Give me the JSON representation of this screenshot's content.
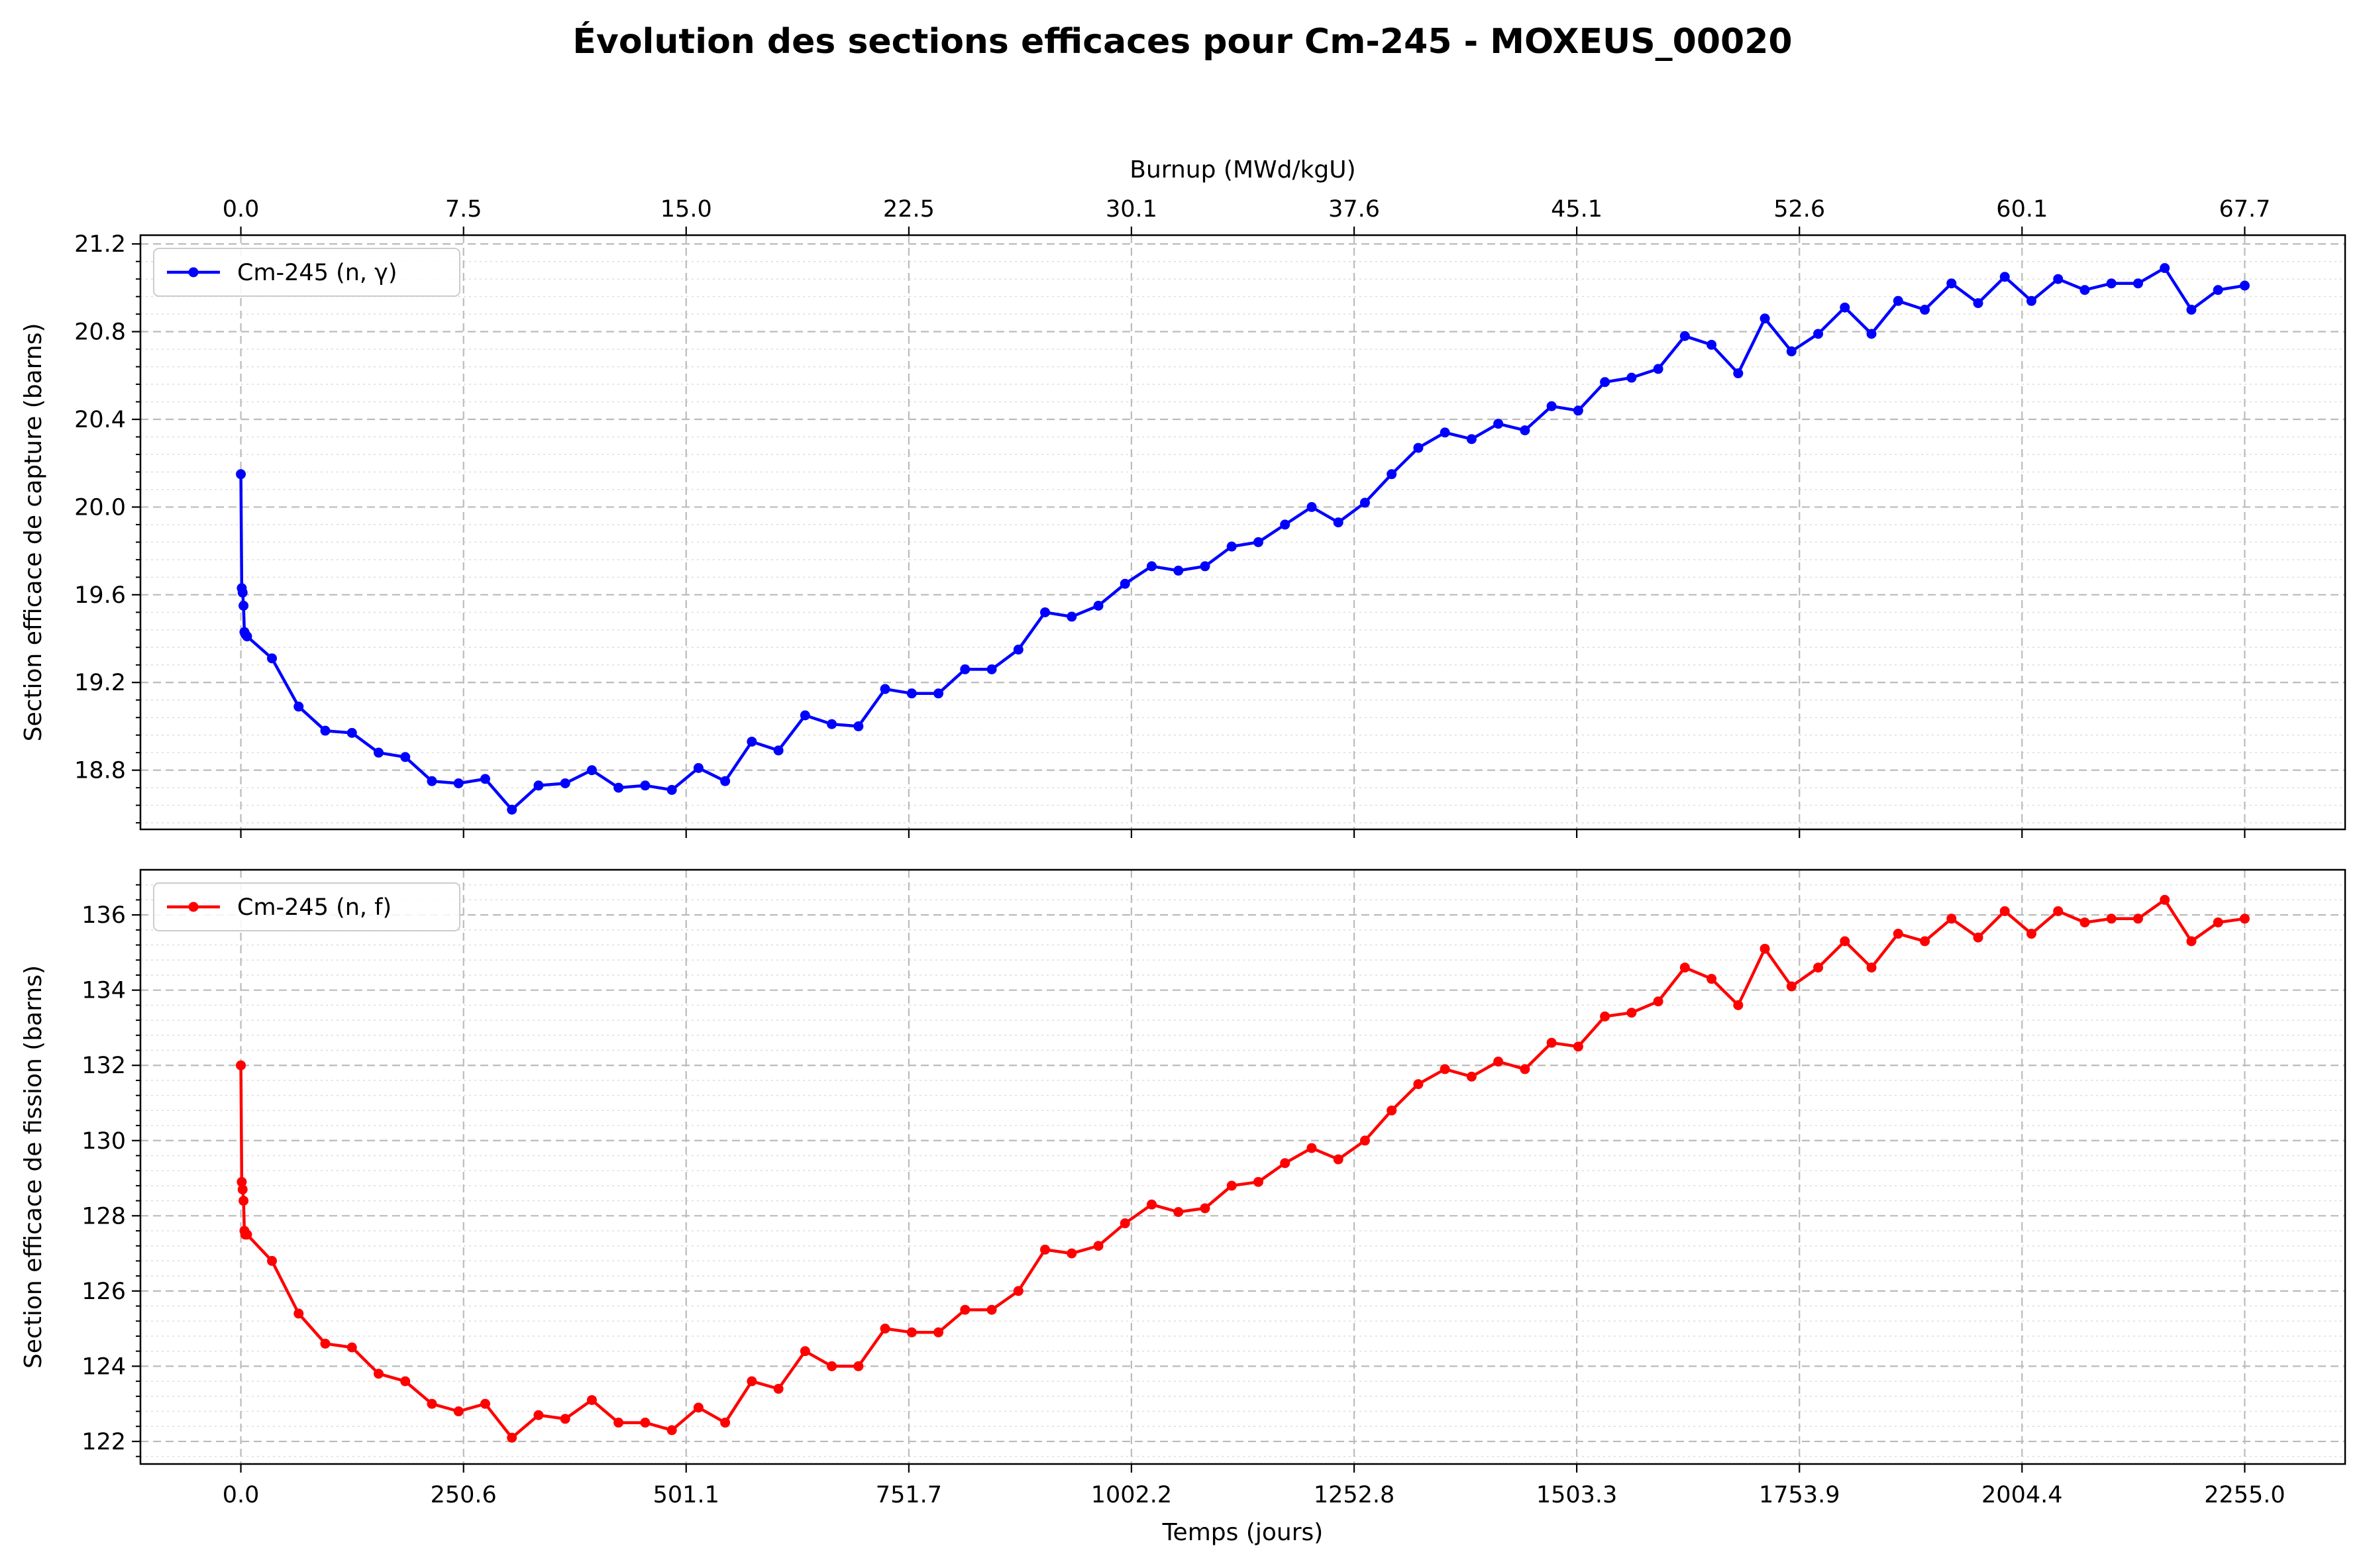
{
  "figure": {
    "title": "Évolution des sections efficaces pour Cm-245 - MOXEUS_00020"
  },
  "chart_data": [
    {
      "type": "line",
      "id": "capture",
      "title": "",
      "xlabel": "Temps (jours)",
      "x2label": "Burnup (MWd/kgU)",
      "ylabel": "Section efficace de capture (barns)",
      "legend": "top-left",
      "grid": true,
      "xlim": [
        -113,
        2368
      ],
      "ylim": [
        18.53,
        21.24
      ],
      "x_ticks": [
        0.0,
        250.6,
        501.1,
        751.7,
        1002.2,
        1252.8,
        1503.3,
        1753.9,
        2004.4,
        2255.0
      ],
      "x_tick_labels": [
        "0.0",
        "250.6",
        "501.1",
        "751.7",
        "1002.2",
        "1252.8",
        "1503.3",
        "1753.9",
        "2004.4",
        "2255.0"
      ],
      "x2_ticks": [
        0.0,
        250.6,
        501.1,
        751.7,
        1002.2,
        1252.8,
        1503.3,
        1753.9,
        2004.4,
        2255.0
      ],
      "x2_tick_labels": [
        "0.0",
        "7.5",
        "15.0",
        "22.5",
        "30.1",
        "37.6",
        "45.1",
        "52.6",
        "60.1",
        "67.7"
      ],
      "y_ticks": [
        18.8,
        19.2,
        19.6,
        20.0,
        20.4,
        20.8,
        21.2
      ],
      "y_tick_labels": [
        "18.8",
        "19.2",
        "19.6",
        "20.0",
        "20.4",
        "20.8",
        "21.2"
      ],
      "series": [
        {
          "name": "Cm-245 (n, γ)",
          "color": "#0000ff",
          "x": [
            0,
            1,
            2,
            3,
            4,
            5,
            7,
            35,
            65,
            95,
            125,
            155,
            185,
            215,
            245,
            275,
            305,
            335,
            365,
            395,
            425,
            455,
            485,
            515,
            545,
            575,
            605,
            635,
            665,
            695,
            725,
            755,
            785,
            815,
            845,
            875,
            905,
            935,
            965,
            995,
            1025,
            1055,
            1085,
            1115,
            1145,
            1175,
            1205,
            1235,
            1265,
            1295,
            1325,
            1355,
            1385,
            1415,
            1445,
            1475,
            1505,
            1535,
            1565,
            1595,
            1625,
            1655,
            1685,
            1715,
            1745,
            1775,
            1805,
            1835,
            1865,
            1895,
            1925,
            1955,
            1985,
            2015,
            2045,
            2075,
            2105,
            2135,
            2165,
            2195,
            2225,
            2255
          ],
          "values": [
            20.15,
            19.63,
            19.61,
            19.55,
            19.43,
            19.42,
            19.41,
            19.31,
            19.09,
            18.98,
            18.97,
            18.88,
            18.86,
            18.75,
            18.74,
            18.76,
            18.62,
            18.73,
            18.74,
            18.8,
            18.72,
            18.73,
            18.71,
            18.81,
            18.75,
            18.93,
            18.89,
            19.05,
            19.01,
            19.0,
            19.17,
            19.15,
            19.15,
            19.26,
            19.26,
            19.35,
            19.52,
            19.5,
            19.55,
            19.65,
            19.73,
            19.71,
            19.73,
            19.82,
            19.84,
            19.92,
            20.0,
            19.93,
            20.02,
            20.15,
            20.27,
            20.34,
            20.31,
            20.38,
            20.35,
            20.46,
            20.44,
            20.57,
            20.59,
            20.63,
            20.78,
            20.74,
            20.61,
            20.86,
            20.71,
            20.79,
            20.91,
            20.79,
            20.94,
            20.9,
            21.02,
            20.93,
            21.05,
            20.94,
            21.04,
            20.99,
            21.02,
            21.02,
            21.09,
            20.9,
            20.99,
            21.01
          ]
        }
      ]
    },
    {
      "type": "line",
      "id": "fission",
      "title": "",
      "xlabel": "Temps (jours)",
      "ylabel": "Section efficace de fission (barns)",
      "legend": "top-left",
      "grid": true,
      "xlim": [
        -113,
        2368
      ],
      "ylim": [
        121.4,
        137.2
      ],
      "x_ticks": [
        0.0,
        250.6,
        501.1,
        751.7,
        1002.2,
        1252.8,
        1503.3,
        1753.9,
        2004.4,
        2255.0
      ],
      "x_tick_labels": [
        "0.0",
        "250.6",
        "501.1",
        "751.7",
        "1002.2",
        "1252.8",
        "1503.3",
        "1753.9",
        "2004.4",
        "2255.0"
      ],
      "y_ticks": [
        122,
        124,
        126,
        128,
        130,
        132,
        134,
        136
      ],
      "y_tick_labels": [
        "122",
        "124",
        "126",
        "128",
        "130",
        "132",
        "134",
        "136"
      ],
      "series": [
        {
          "name": "Cm-245 (n, f)",
          "color": "#ff0000",
          "x": [
            0,
            1,
            2,
            3,
            4,
            5,
            7,
            35,
            65,
            95,
            125,
            155,
            185,
            215,
            245,
            275,
            305,
            335,
            365,
            395,
            425,
            455,
            485,
            515,
            545,
            575,
            605,
            635,
            665,
            695,
            725,
            755,
            785,
            815,
            845,
            875,
            905,
            935,
            965,
            995,
            1025,
            1055,
            1085,
            1115,
            1145,
            1175,
            1205,
            1235,
            1265,
            1295,
            1325,
            1355,
            1385,
            1415,
            1445,
            1475,
            1505,
            1535,
            1565,
            1595,
            1625,
            1655,
            1685,
            1715,
            1745,
            1775,
            1805,
            1835,
            1865,
            1895,
            1925,
            1955,
            1985,
            2015,
            2045,
            2075,
            2105,
            2135,
            2165,
            2195,
            2225,
            2255
          ],
          "values": [
            132.0,
            128.9,
            128.7,
            128.4,
            127.6,
            127.5,
            127.5,
            126.8,
            125.4,
            124.6,
            124.5,
            123.8,
            123.6,
            123.0,
            122.8,
            123.0,
            122.1,
            122.7,
            122.6,
            123.1,
            122.5,
            122.5,
            122.3,
            122.9,
            122.5,
            123.6,
            123.4,
            124.4,
            124.0,
            124.0,
            125.0,
            124.9,
            124.9,
            125.5,
            125.5,
            126.0,
            127.1,
            127.0,
            127.2,
            127.8,
            128.3,
            128.1,
            128.2,
            128.8,
            128.9,
            129.4,
            129.8,
            129.5,
            130.0,
            130.8,
            131.5,
            131.9,
            131.7,
            132.1,
            131.9,
            132.6,
            132.5,
            133.3,
            133.4,
            133.7,
            134.6,
            134.3,
            133.6,
            135.1,
            134.1,
            134.6,
            135.3,
            134.6,
            135.5,
            135.3,
            135.9,
            135.4,
            136.1,
            135.5,
            136.1,
            135.8,
            135.9,
            135.9,
            136.4,
            135.3,
            135.8,
            135.9
          ]
        }
      ]
    }
  ]
}
